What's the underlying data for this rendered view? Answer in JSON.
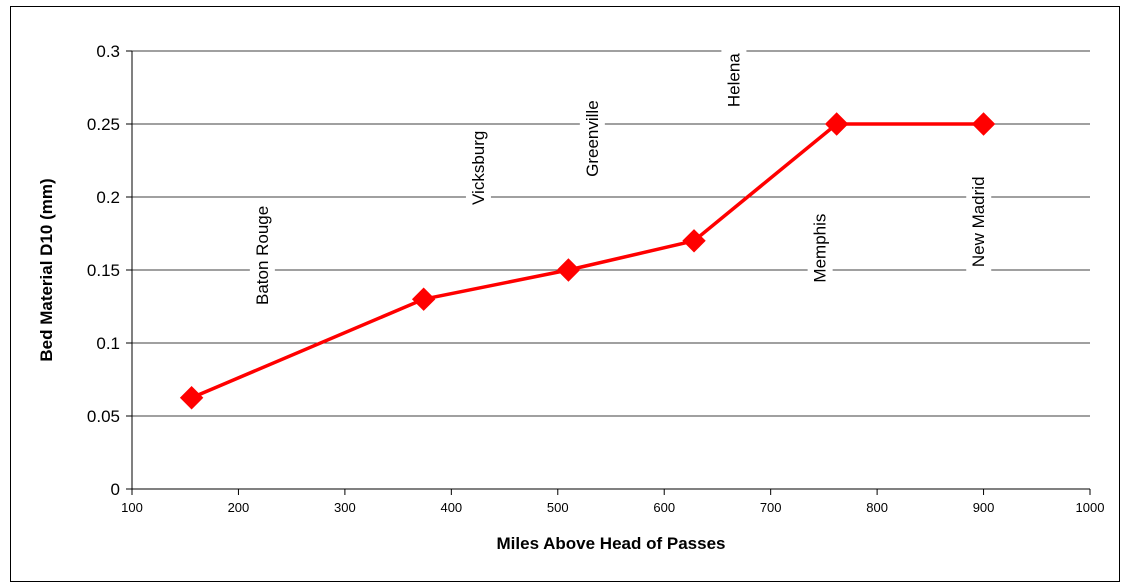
{
  "chart_data": {
    "type": "line",
    "title": "",
    "xlabel": "Miles Above Head of Passes",
    "ylabel": "Bed Material D10 (mm)",
    "xlim": [
      100,
      1000
    ],
    "ylim": [
      0,
      0.3
    ],
    "xticks": [
      100,
      200,
      300,
      400,
      500,
      600,
      700,
      800,
      900,
      1000
    ],
    "yticks": [
      0,
      0.05,
      0.1,
      0.15,
      0.2,
      0.25,
      0.3
    ],
    "grid": "horizontal",
    "legend": "none",
    "series": [
      {
        "color": "#ff0000",
        "marker": "diamond",
        "x": [
          156,
          374,
          510,
          628,
          762,
          900
        ],
        "y": [
          0.0625,
          0.13,
          0.15,
          0.17,
          0.25,
          0.25
        ]
      }
    ],
    "annotations": [
      {
        "text": "Baton Rouge",
        "x": 222,
        "y": 0.16
      },
      {
        "text": "Vicksburg",
        "x": 425,
        "y": 0.22
      },
      {
        "text": "Greenville",
        "x": 532,
        "y": 0.24
      },
      {
        "text": "Helena",
        "x": 665,
        "y": 0.28
      },
      {
        "text": "Memphis",
        "x": 746,
        "y": 0.165
      },
      {
        "text": "New Madrid",
        "x": 895,
        "y": 0.183
      }
    ]
  }
}
